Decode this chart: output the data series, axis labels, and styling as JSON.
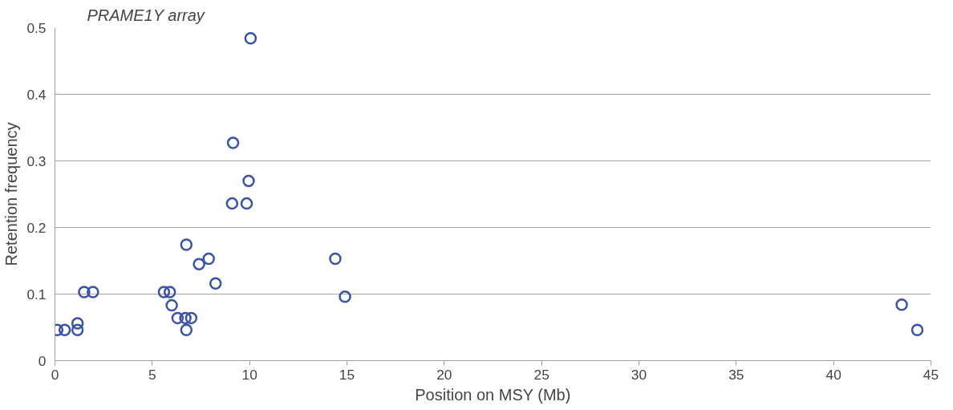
{
  "chart_data": {
    "type": "scatter",
    "xlabel": "Position on MSY (Mb)",
    "ylabel": "Retention frequency",
    "annotations": [
      "PRAME1Y array"
    ],
    "x": [
      0.12,
      0.5,
      1.16,
      1.16,
      1.5,
      1.95,
      5.6,
      5.9,
      6.0,
      6.3,
      6.7,
      7.0,
      6.75,
      6.75,
      7.4,
      7.9,
      8.25,
      9.1,
      9.15,
      9.85,
      9.95,
      10.05,
      14.4,
      14.9,
      43.5,
      44.3
    ],
    "series": [
      {
        "color": "#3a53a4",
        "values": [
          0.046,
          0.046,
          0.056,
          0.046,
          0.103,
          0.103,
          0.103,
          0.103,
          0.083,
          0.064,
          0.064,
          0.064,
          0.046,
          0.174,
          0.145,
          0.153,
          0.116,
          0.236,
          0.327,
          0.236,
          0.27,
          0.484,
          0.153,
          0.096,
          0.084,
          0.046
        ]
      }
    ],
    "xlim": [
      0,
      45
    ],
    "xticks": [
      0,
      5,
      10,
      15,
      20,
      25,
      30,
      35,
      40,
      45
    ],
    "ylim": [
      0,
      0.5
    ],
    "yticks": [
      0,
      0.1,
      0.2,
      0.3,
      0.4,
      0.5
    ],
    "grid": "y",
    "marker": "circle"
  }
}
